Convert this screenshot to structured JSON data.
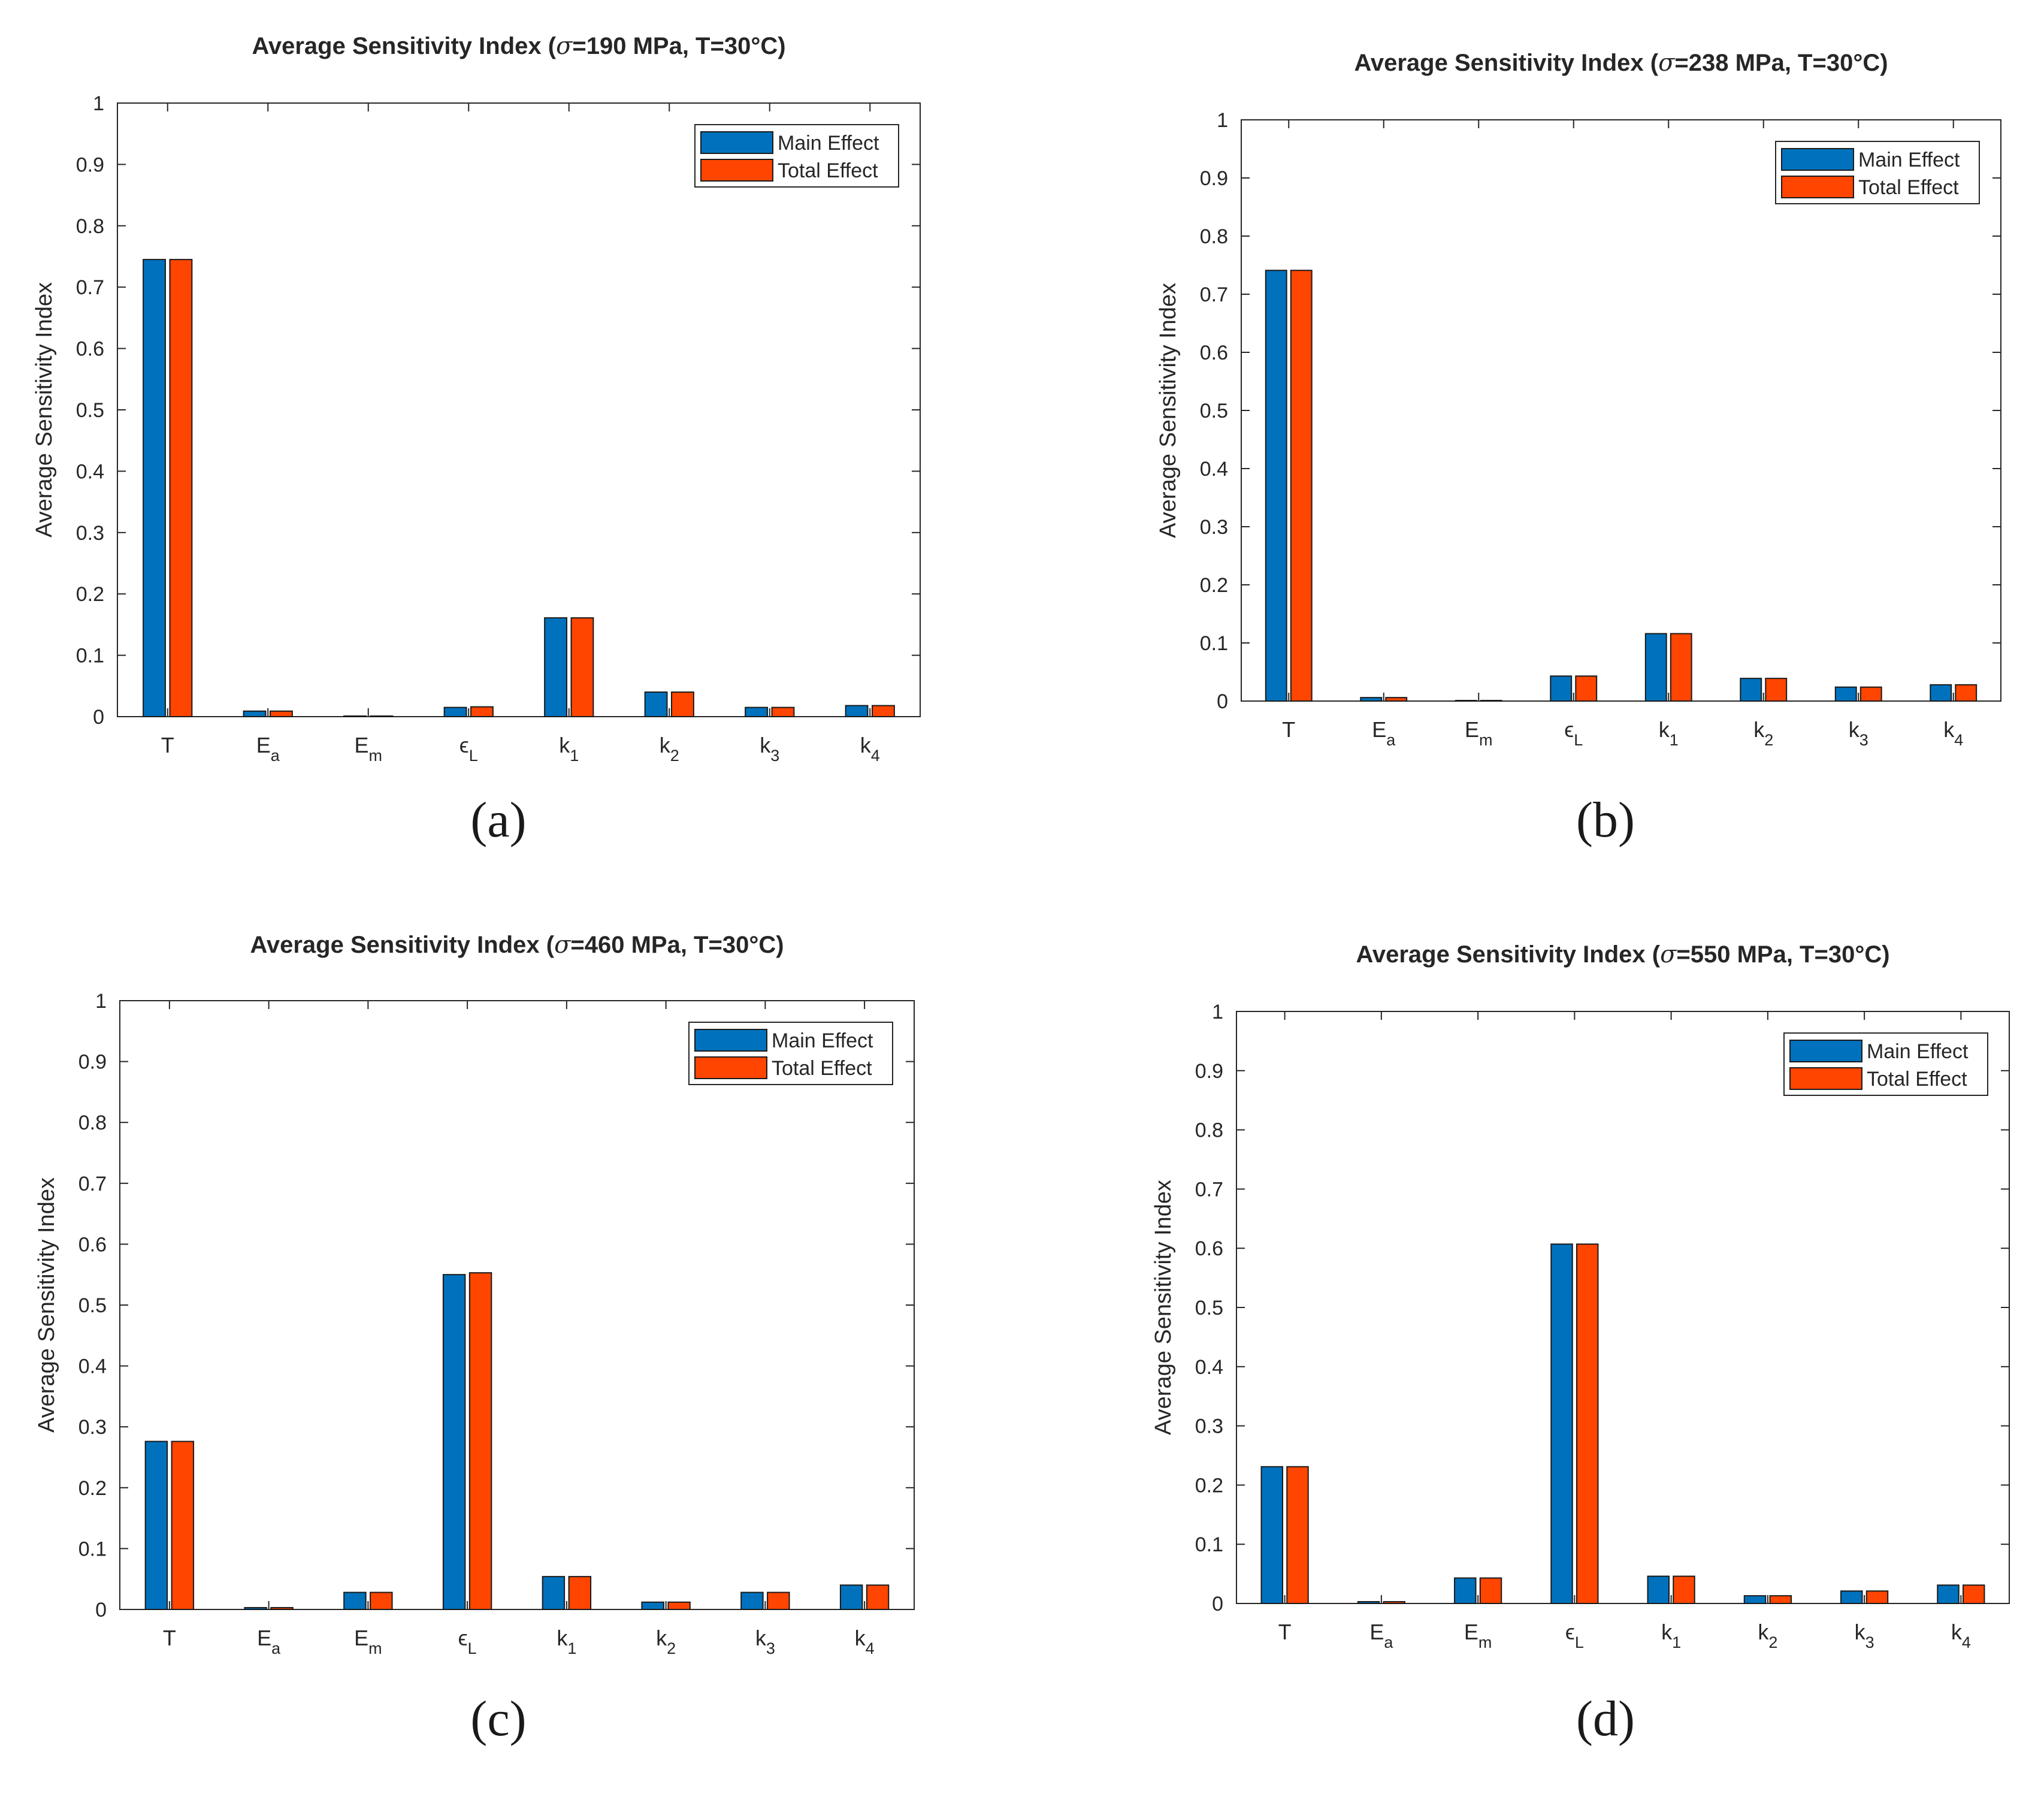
{
  "chart_data": [
    {
      "type": "bar",
      "title_prefix": "Average Sensitivity Index (",
      "title_symbol": "σ",
      "title_suffix": "=190 MPa, T=30°C)",
      "ylabel": "Average Sensitivity Index",
      "xlabel": "",
      "ylim": [
        0,
        1
      ],
      "yticks": [
        "0",
        "0.1",
        "0.2",
        "0.3",
        "0.4",
        "0.5",
        "0.6",
        "0.7",
        "0.8",
        "0.9",
        "1"
      ],
      "categories": [
        {
          "base": "T",
          "sub": ""
        },
        {
          "base": "E",
          "sub": "a"
        },
        {
          "base": "E",
          "sub": "m"
        },
        {
          "base": "ϵ",
          "sub": "L"
        },
        {
          "base": "k",
          "sub": "1"
        },
        {
          "base": "k",
          "sub": "2"
        },
        {
          "base": "k",
          "sub": "3"
        },
        {
          "base": "k",
          "sub": "4"
        }
      ],
      "series": [
        {
          "name": "Main Effect",
          "color": "#0072BD",
          "values": [
            0.745,
            0.009,
            0.001,
            0.015,
            0.161,
            0.04,
            0.015,
            0.018
          ]
        },
        {
          "name": "Total Effect",
          "color": "#FF4500",
          "values": [
            0.745,
            0.009,
            0.001,
            0.016,
            0.161,
            0.04,
            0.015,
            0.018
          ]
        }
      ],
      "legend_position": "top-right",
      "caption": "(a)"
    },
    {
      "type": "bar",
      "title_prefix": "Average Sensitivity Index (",
      "title_symbol": "σ",
      "title_suffix": "=238 MPa, T=30°C)",
      "ylabel": "Average Sensitivity Index",
      "xlabel": "",
      "ylim": [
        0,
        1
      ],
      "yticks": [
        "0",
        "0.1",
        "0.2",
        "0.3",
        "0.4",
        "0.5",
        "0.6",
        "0.7",
        "0.8",
        "0.9",
        "1"
      ],
      "categories": [
        {
          "base": "T",
          "sub": ""
        },
        {
          "base": "E",
          "sub": "a"
        },
        {
          "base": "E",
          "sub": "m"
        },
        {
          "base": "ϵ",
          "sub": "L"
        },
        {
          "base": "k",
          "sub": "1"
        },
        {
          "base": "k",
          "sub": "2"
        },
        {
          "base": "k",
          "sub": "3"
        },
        {
          "base": "k",
          "sub": "4"
        }
      ],
      "series": [
        {
          "name": "Main Effect",
          "color": "#0072BD",
          "values": [
            0.741,
            0.006,
            0.001,
            0.043,
            0.116,
            0.039,
            0.024,
            0.028
          ]
        },
        {
          "name": "Total Effect",
          "color": "#FF4500",
          "values": [
            0.741,
            0.006,
            0.001,
            0.043,
            0.116,
            0.039,
            0.024,
            0.028
          ]
        }
      ],
      "legend_position": "top-right",
      "caption": "(b)"
    },
    {
      "type": "bar",
      "title_prefix": "Average Sensitivity Index (",
      "title_symbol": "σ",
      "title_suffix": "=460 MPa, T=30°C)",
      "ylabel": "Average Sensitivity Index",
      "xlabel": "",
      "ylim": [
        0,
        1
      ],
      "yticks": [
        "0",
        "0.1",
        "0.2",
        "0.3",
        "0.4",
        "0.5",
        "0.6",
        "0.7",
        "0.8",
        "0.9",
        "1"
      ],
      "categories": [
        {
          "base": "T",
          "sub": ""
        },
        {
          "base": "E",
          "sub": "a"
        },
        {
          "base": "E",
          "sub": "m"
        },
        {
          "base": "ϵ",
          "sub": "L"
        },
        {
          "base": "k",
          "sub": "1"
        },
        {
          "base": "k",
          "sub": "2"
        },
        {
          "base": "k",
          "sub": "3"
        },
        {
          "base": "k",
          "sub": "4"
        }
      ],
      "series": [
        {
          "name": "Main Effect",
          "color": "#0072BD",
          "values": [
            0.276,
            0.003,
            0.028,
            0.55,
            0.054,
            0.012,
            0.028,
            0.04
          ]
        },
        {
          "name": "Total Effect",
          "color": "#FF4500",
          "values": [
            0.276,
            0.003,
            0.028,
            0.553,
            0.054,
            0.012,
            0.028,
            0.04
          ]
        }
      ],
      "legend_position": "top-right",
      "caption": "(c)"
    },
    {
      "type": "bar",
      "title_prefix": "Average Sensitivity Index (",
      "title_symbol": "σ",
      "title_suffix": "=550 MPa, T=30°C)",
      "ylabel": "Average Sensitivity Index",
      "xlabel": "",
      "ylim": [
        0,
        1
      ],
      "yticks": [
        "0",
        "0.1",
        "0.2",
        "0.3",
        "0.4",
        "0.5",
        "0.6",
        "0.7",
        "0.8",
        "0.9",
        "1"
      ],
      "categories": [
        {
          "base": "T",
          "sub": ""
        },
        {
          "base": "E",
          "sub": "a"
        },
        {
          "base": "E",
          "sub": "m"
        },
        {
          "base": "ϵ",
          "sub": "L"
        },
        {
          "base": "k",
          "sub": "1"
        },
        {
          "base": "k",
          "sub": "2"
        },
        {
          "base": "k",
          "sub": "3"
        },
        {
          "base": "k",
          "sub": "4"
        }
      ],
      "series": [
        {
          "name": "Main Effect",
          "color": "#0072BD",
          "values": [
            0.231,
            0.003,
            0.043,
            0.607,
            0.046,
            0.013,
            0.021,
            0.031
          ]
        },
        {
          "name": "Total Effect",
          "color": "#FF4500",
          "values": [
            0.231,
            0.003,
            0.043,
            0.607,
            0.046,
            0.013,
            0.021,
            0.031
          ]
        }
      ],
      "legend_position": "top-right",
      "caption": "(d)"
    }
  ]
}
